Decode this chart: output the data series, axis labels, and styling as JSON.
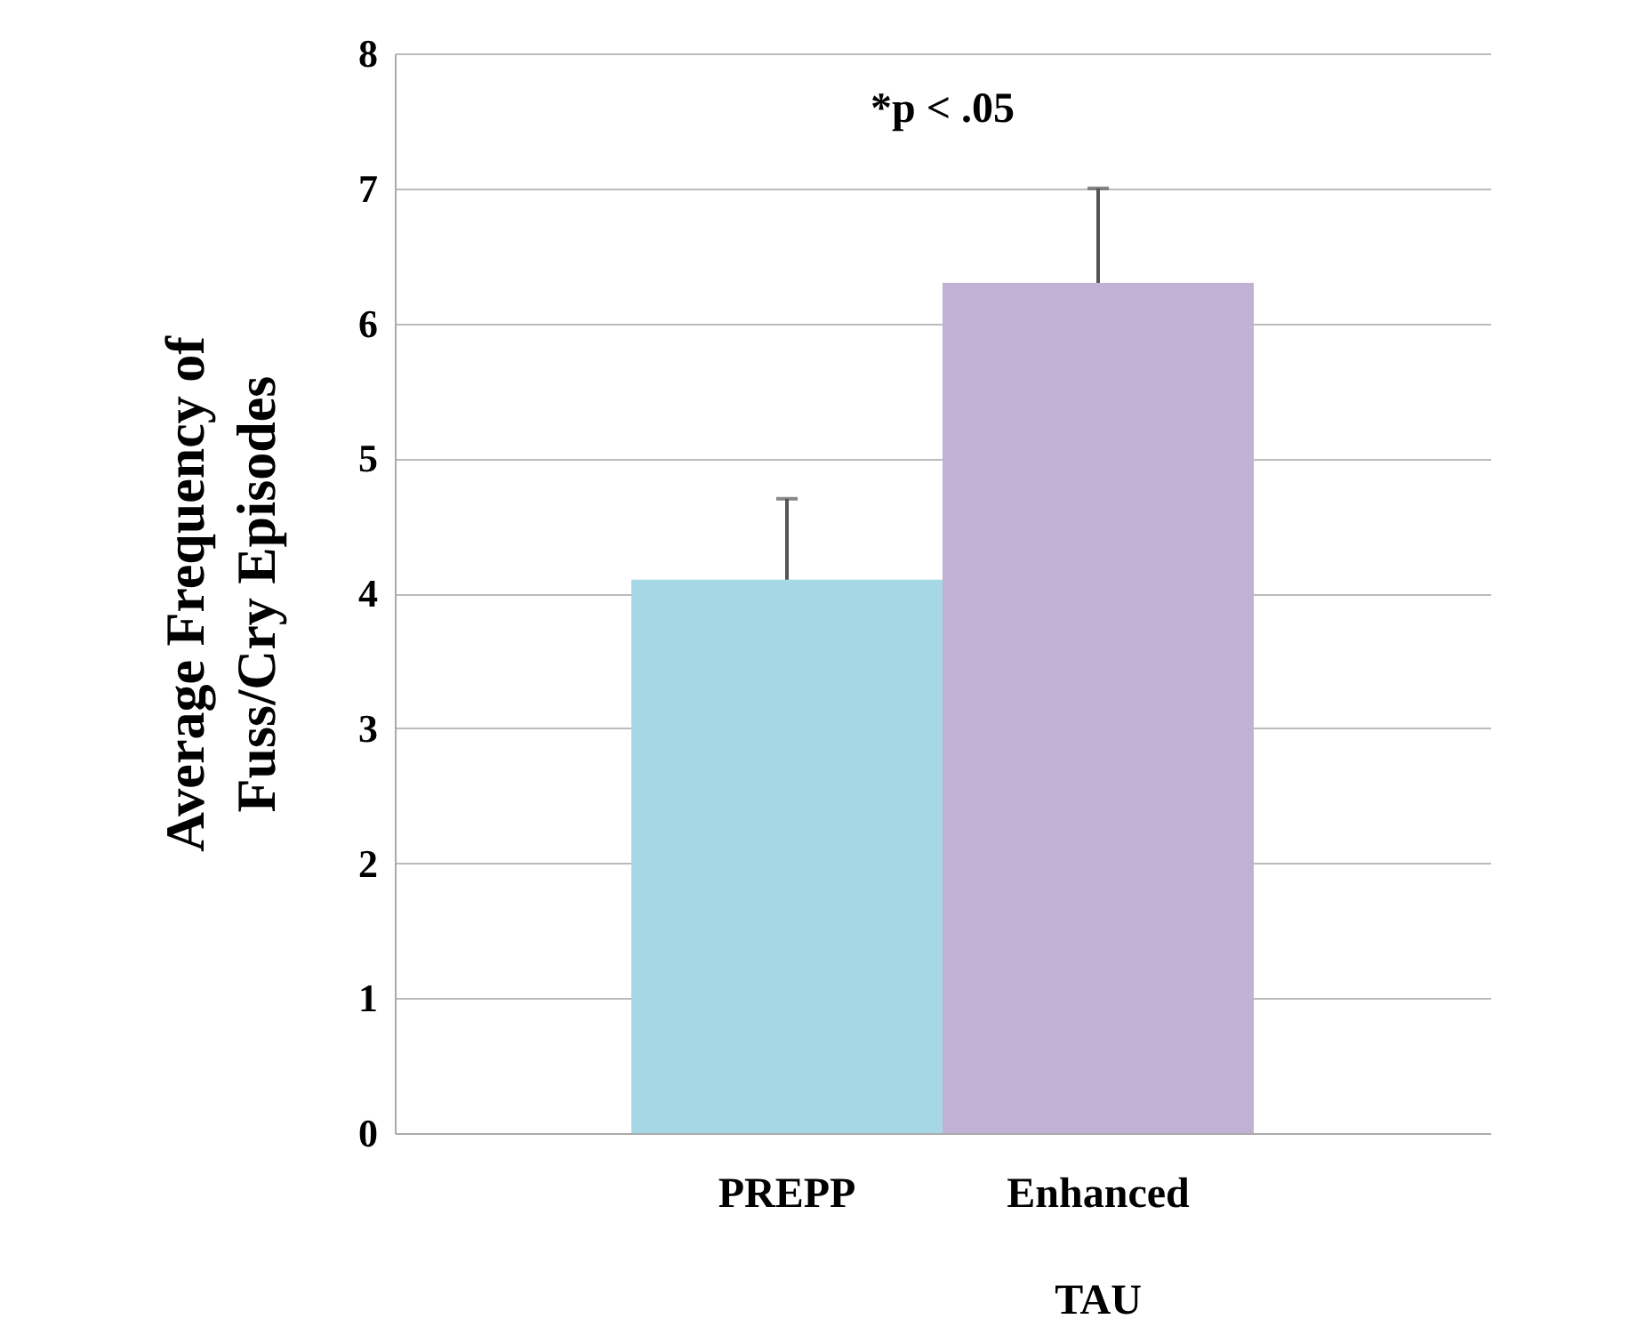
{
  "chart_data": {
    "type": "bar",
    "ylabel": "Average Frequency of\nFuss/Cry Episodes",
    "categories": [
      "PREPP",
      "Enhanced TAU"
    ],
    "values": [
      4.1,
      6.3
    ],
    "colors": [
      "#a5d7e4",
      "#c1b1d4"
    ],
    "errors": [
      [
        4.1,
        4.7
      ],
      [
        6.3,
        7.0
      ]
    ],
    "ylim": [
      0,
      8
    ],
    "yticks": [
      0,
      1,
      2,
      3,
      4,
      5,
      6,
      7,
      8
    ],
    "grid": "y",
    "legend": false,
    "annotations": [
      "*p < .05"
    ]
  }
}
